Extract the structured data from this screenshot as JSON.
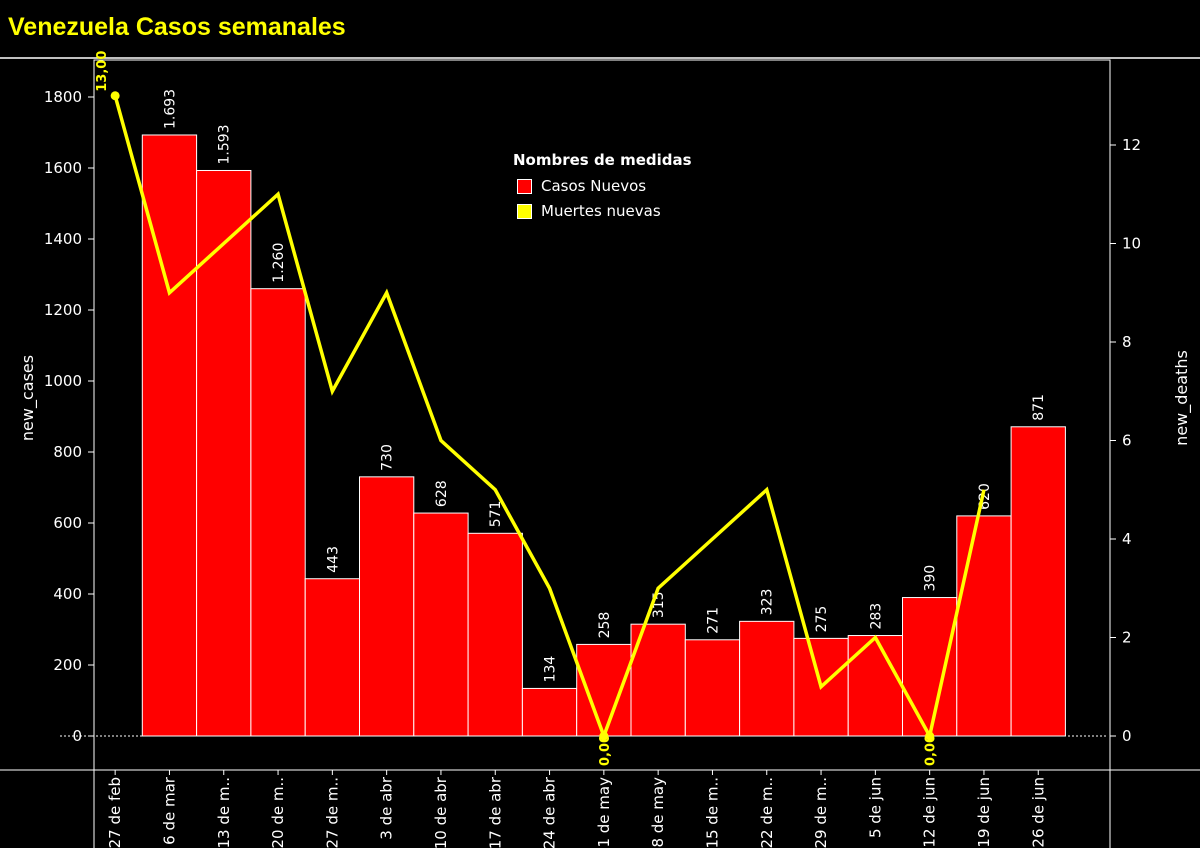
{
  "title": "Venezuela Casos semanales",
  "chart_data": {
    "type": "bar+line",
    "categories": [
      "27 de feb",
      "6 de mar",
      "13 de m..",
      "20 de m..",
      "27 de m..",
      "3 de abr",
      "10 de abr",
      "17 de abr",
      "24 de abr",
      "1 de may",
      "8 de may",
      "15 de m..",
      "22 de m..",
      "29 de m..",
      "5 de jun",
      "12 de jun",
      "19 de jun",
      "26 de jun"
    ],
    "bars": {
      "name": "Casos Nuevos",
      "color": "#ff0000",
      "values": [
        null,
        1693,
        1593,
        1260,
        443,
        730,
        628,
        571,
        134,
        258,
        315,
        271,
        323,
        275,
        283,
        390,
        620,
        871
      ],
      "labels": [
        null,
        "1.693",
        "1.593",
        "1.260",
        "443",
        "730",
        "628",
        "571",
        "134",
        "258",
        "315",
        "271",
        "323",
        "275",
        "283",
        "390",
        "620",
        "871"
      ]
    },
    "line": {
      "name": "Muertes nuevas",
      "color": "#ffff00",
      "values": [
        13,
        9,
        10,
        11,
        7,
        9,
        6,
        5,
        3,
        0,
        3,
        4,
        5,
        1,
        2,
        0,
        5,
        null
      ],
      "labels": [
        {
          "index": 0,
          "text": "13,00"
        },
        {
          "index": 9,
          "text": "0,00"
        },
        {
          "index": 15,
          "text": "0,00"
        }
      ]
    },
    "ylabel_left": "new_cases",
    "ylabel_right": "new_deaths",
    "ylim_left": [
      -100,
      1900
    ],
    "yticks_left": [
      0,
      200,
      400,
      600,
      800,
      1000,
      1200,
      1400,
      1600,
      1800
    ],
    "ylim_right": [
      -0.69,
      13.5
    ],
    "yticks_right": [
      0,
      2,
      4,
      6,
      8,
      10,
      12
    ],
    "legend": {
      "title": "Nombres de medidas",
      "placement": "top-center"
    }
  }
}
